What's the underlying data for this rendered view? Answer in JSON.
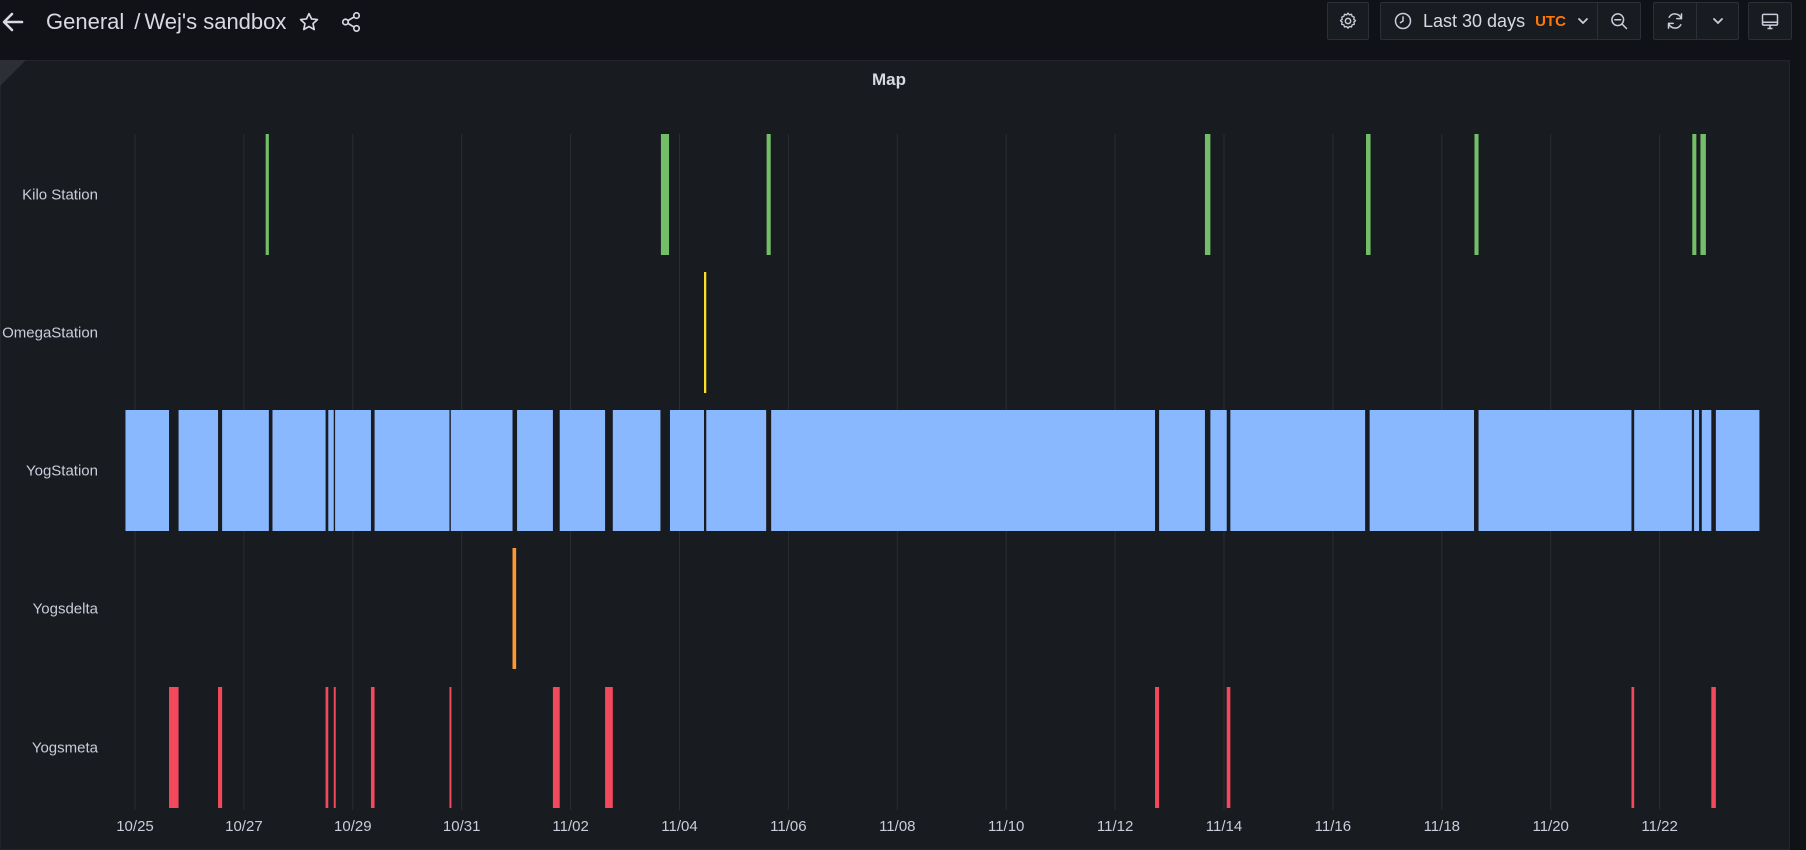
{
  "header": {
    "breadcrumb_folder": "General",
    "separator": "/",
    "dashboard_title": "Wej's sandbox",
    "icons": {
      "back": "arrow-left-icon",
      "star": "star-icon",
      "share": "share-icon",
      "settings": "gear-icon",
      "clock": "clock-icon",
      "chevron": "chevron-down-icon",
      "zoom_out": "zoom-out-icon",
      "refresh": "refresh-icon",
      "tv": "monitor-icon"
    }
  },
  "time_picker": {
    "label": "Last 30 days",
    "timezone": "UTC",
    "timezone_color": "#ff780a"
  },
  "panel": {
    "title": "Map"
  },
  "chart_data": {
    "type": "state-timeline",
    "x_axis": {
      "type": "time",
      "range": [
        "10/24 20:00",
        "11/23 20:00"
      ],
      "ticks": [
        "10/25",
        "10/27",
        "10/29",
        "10/31",
        "11/02",
        "11/04",
        "11/06",
        "11/08",
        "11/10",
        "11/12",
        "11/14",
        "11/16",
        "11/18",
        "11/20",
        "11/22"
      ]
    },
    "rows": [
      {
        "name": "Kilo Station",
        "color": "#73bf69",
        "segments": [
          {
            "start": "10/27 09:36",
            "end": "10/27 11:00"
          },
          {
            "start": "11/03 15:48",
            "end": "11/03 19:24"
          },
          {
            "start": "11/05 14:24",
            "end": "11/05 16:12"
          },
          {
            "start": "11/13 15:36",
            "end": "11/13 18:00"
          },
          {
            "start": "11/16 14:36",
            "end": "11/16 16:36"
          },
          {
            "start": "11/18 14:24",
            "end": "11/18 16:12"
          },
          {
            "start": "11/22 14:24",
            "end": "11/22 16:12"
          },
          {
            "start": "11/22 18:00",
            "end": "11/22 20:24"
          }
        ]
      },
      {
        "name": "OmegaStation",
        "color": "#fade2a",
        "segments": [
          {
            "start": "11/04 10:48",
            "end": "11/04 11:48"
          }
        ]
      },
      {
        "name": "YogStation",
        "color": "#8ab8ff",
        "segments": [
          {
            "start": "10/24 19:48",
            "end": "10/25 15:00"
          },
          {
            "start": "10/25 19:12",
            "end": "10/26 12:36"
          },
          {
            "start": "10/26 14:24",
            "end": "10/27 11:00"
          },
          {
            "start": "10/27 12:36",
            "end": "10/28 12:00"
          },
          {
            "start": "10/28 13:12",
            "end": "10/28 15:36"
          },
          {
            "start": "10/28 16:12",
            "end": "10/29 08:00"
          },
          {
            "start": "10/29 09:36",
            "end": "10/30 18:36"
          },
          {
            "start": "10/30 19:12",
            "end": "10/31 22:24"
          },
          {
            "start": "11/01 00:24",
            "end": "11/01 16:12"
          },
          {
            "start": "11/01 19:12",
            "end": "11/02 15:12"
          },
          {
            "start": "11/02 18:36",
            "end": "11/03 15:36"
          },
          {
            "start": "11/03 19:48",
            "end": "11/04 10:48"
          },
          {
            "start": "11/04 11:48",
            "end": "11/05 14:12"
          },
          {
            "start": "11/05 16:24",
            "end": "11/12 17:36"
          },
          {
            "start": "11/12 19:24",
            "end": "11/13 15:36"
          },
          {
            "start": "11/13 18:00",
            "end": "11/14 01:12"
          },
          {
            "start": "11/14 02:48",
            "end": "11/16 14:12"
          },
          {
            "start": "11/16 16:12",
            "end": "11/18 14:12"
          },
          {
            "start": "11/18 16:12",
            "end": "11/21 11:36"
          },
          {
            "start": "11/21 12:48",
            "end": "11/22 14:12"
          },
          {
            "start": "11/22 15:12",
            "end": "11/22 17:24"
          },
          {
            "start": "11/22 18:36",
            "end": "11/22 22:48"
          },
          {
            "start": "11/23 00:48",
            "end": "11/23 20:00"
          }
        ]
      },
      {
        "name": "Yogsdelta",
        "color": "#ff9830",
        "segments": [
          {
            "start": "10/31 22:24",
            "end": "11/01 00:00"
          }
        ]
      },
      {
        "name": "Yogsmeta",
        "color": "#f2495c",
        "segments": [
          {
            "start": "10/25 15:00",
            "end": "10/25 19:12"
          },
          {
            "start": "10/26 12:36",
            "end": "10/26 14:24"
          },
          {
            "start": "10/28 12:00",
            "end": "10/28 13:12"
          },
          {
            "start": "10/28 15:36",
            "end": "10/28 16:12"
          },
          {
            "start": "10/29 08:00",
            "end": "10/29 09:36"
          },
          {
            "start": "10/30 18:36",
            "end": "10/30 19:12"
          },
          {
            "start": "11/01 16:12",
            "end": "11/01 19:12"
          },
          {
            "start": "11/02 15:12",
            "end": "11/02 18:36"
          },
          {
            "start": "11/12 17:36",
            "end": "11/12 19:24"
          },
          {
            "start": "11/14 01:12",
            "end": "11/14 02:48"
          },
          {
            "start": "11/21 11:36",
            "end": "11/21 12:48"
          },
          {
            "start": "11/22 22:48",
            "end": "11/23 00:48"
          }
        ]
      }
    ],
    "grid": true,
    "legend": "none"
  }
}
